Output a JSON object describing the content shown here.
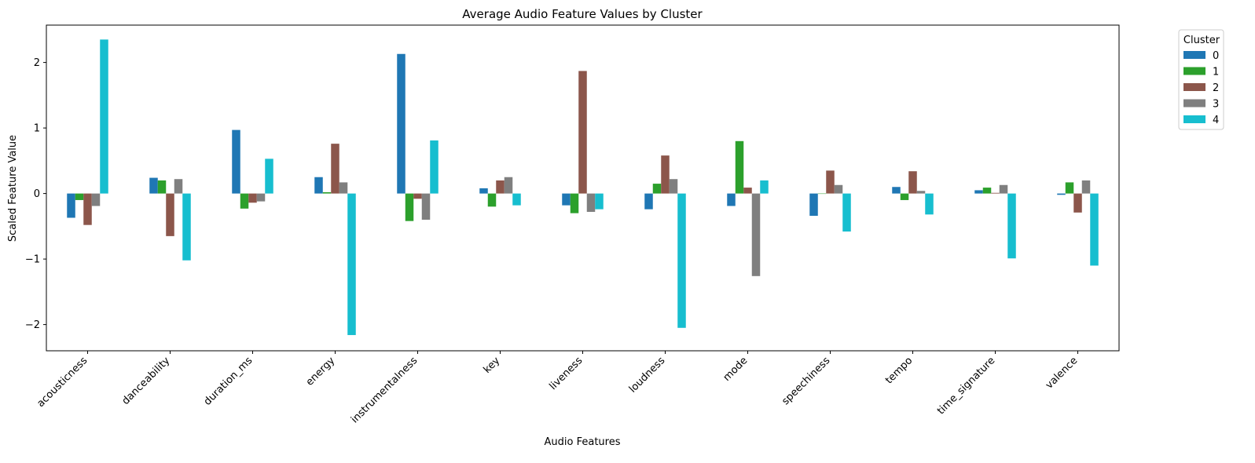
{
  "chart_data": {
    "type": "bar",
    "title": "Average Audio Feature Values by Cluster",
    "xlabel": "Audio Features",
    "ylabel": "Scaled Feature Value",
    "ylim": [
      -2.4,
      2.57
    ],
    "yticks": [
      -2,
      -1,
      0,
      1,
      2
    ],
    "ytick_labels": [
      "−2",
      "−1",
      "0",
      "1",
      "2"
    ],
    "grid": false,
    "legend_title": "Cluster",
    "legend_position": "outside-top-right",
    "categories": [
      "acousticness",
      "danceability",
      "duration_ms",
      "energy",
      "instrumentalness",
      "key",
      "liveness",
      "loudness",
      "mode",
      "speechiness",
      "tempo",
      "time_signature",
      "valence"
    ],
    "series": [
      {
        "name": "0",
        "color": "#1f77b4",
        "values": [
          -0.37,
          0.24,
          0.97,
          0.25,
          2.13,
          0.08,
          -0.18,
          -0.24,
          -0.19,
          -0.34,
          0.1,
          0.05,
          -0.02
        ]
      },
      {
        "name": "1",
        "color": "#2ca02c",
        "values": [
          -0.1,
          0.2,
          -0.23,
          0.02,
          -0.42,
          -0.2,
          -0.3,
          0.15,
          0.8,
          0.0,
          -0.1,
          0.09,
          0.17
        ]
      },
      {
        "name": "2",
        "color": "#8c564b",
        "values": [
          -0.48,
          -0.65,
          -0.14,
          0.76,
          -0.08,
          0.2,
          1.87,
          0.58,
          0.09,
          0.35,
          0.34,
          0.01,
          -0.29
        ]
      },
      {
        "name": "3",
        "color": "#7f7f7f",
        "values": [
          -0.19,
          0.22,
          -0.12,
          0.17,
          -0.4,
          0.25,
          -0.28,
          0.22,
          -1.26,
          0.13,
          0.04,
          0.13,
          0.2
        ]
      },
      {
        "name": "4",
        "color": "#17becf",
        "values": [
          2.35,
          -1.02,
          0.53,
          -2.16,
          0.81,
          -0.18,
          -0.24,
          -2.05,
          0.2,
          -0.58,
          -0.32,
          -0.99,
          -1.1
        ]
      }
    ]
  }
}
